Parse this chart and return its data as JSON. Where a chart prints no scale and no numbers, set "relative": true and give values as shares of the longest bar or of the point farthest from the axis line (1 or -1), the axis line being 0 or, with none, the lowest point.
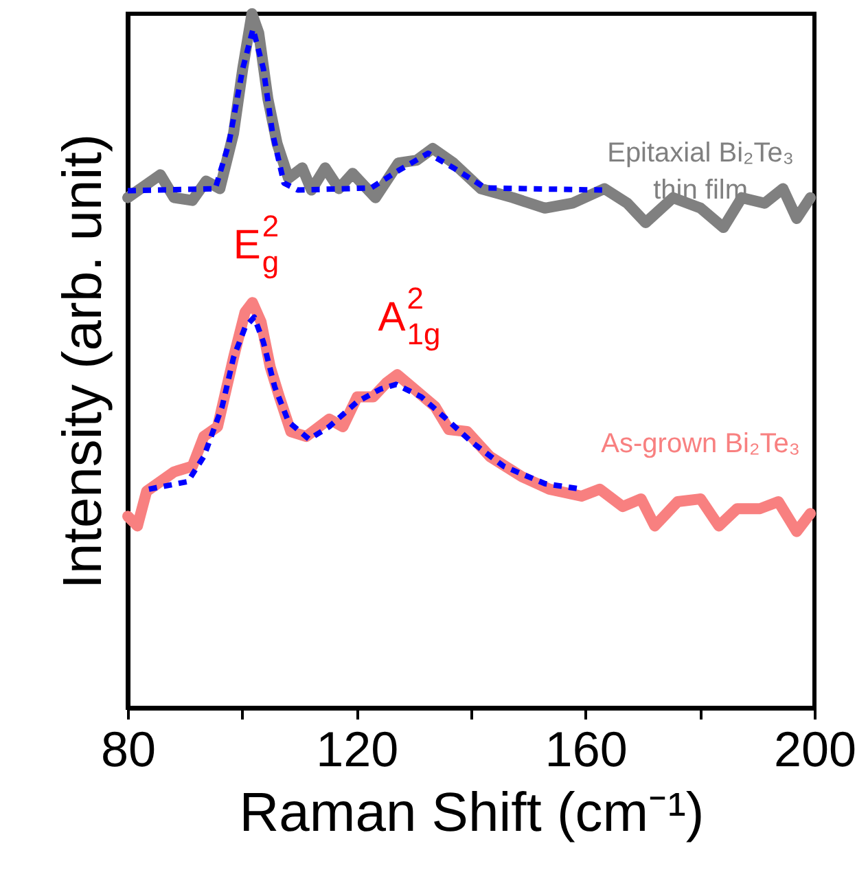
{
  "chart_data": {
    "type": "line",
    "relative": true,
    "xlabel": "Raman Shift (cm⁻¹)",
    "ylabel": "Intensity (arb. unit)",
    "xlim": [
      80,
      200
    ],
    "xticks": [
      80,
      {
        "value": 100,
        "label": null
      },
      120,
      {
        "value": 140,
        "label": null
      },
      160,
      {
        "value": 180,
        "label": null
      },
      200
    ],
    "grid": false,
    "legend": false,
    "marker": "none",
    "series": [
      {
        "name": "Epitaxial Bi₂Te₃\nthin film",
        "color": "#808080",
        "line_style": "solid",
        "x": [
          80,
          85.7,
          88.1,
          91.3,
          93.7,
          96.1,
          98.5,
          100.1,
          101.7,
          102.9,
          104.5,
          106.1,
          108.1,
          110.5,
          112.1,
          114.5,
          116.9,
          119.3,
          123.3,
          127.3,
          130.5,
          133.3,
          136.9,
          141.7,
          147.3,
          152.9,
          157.7,
          163.3,
          167.3,
          170.5,
          175.3,
          180.1,
          184.1,
          187.3,
          191.3,
          194.5,
          196.9,
          199.3
        ],
        "values": [
          0.735,
          0.768,
          0.735,
          0.731,
          0.759,
          0.748,
          0.828,
          0.921,
          1,
          0.972,
          0.877,
          0.813,
          0.763,
          0.778,
          0.746,
          0.778,
          0.748,
          0.77,
          0.735,
          0.785,
          0.789,
          0.806,
          0.785,
          0.748,
          0.735,
          0.72,
          0.727,
          0.748,
          0.727,
          0.699,
          0.735,
          0.72,
          0.692,
          0.735,
          0.727,
          0.748,
          0.705,
          0.735
        ]
      },
      {
        "color": "#0000ff",
        "line_style": "dashed",
        "x": [
          80,
          95.3,
          97.7,
          100.1,
          101.9,
          103.7,
          105.3,
          107.3,
          109.7,
          122.5,
          127.3,
          132.5,
          136.9,
          142.5,
          162.9
        ],
        "values": [
          0.745,
          0.748,
          0.814,
          0.921,
          0.978,
          0.921,
          0.828,
          0.756,
          0.746,
          0.749,
          0.774,
          0.799,
          0.778,
          0.749,
          0.746
        ]
      },
      {
        "name": "As-grown Bi₂Te₃",
        "color": "#f88080",
        "line_style": "solid",
        "x": [
          80,
          81.7,
          83.3,
          88.1,
          91.3,
          93.3,
          95.7,
          98.5,
          100.5,
          101.8,
          103.3,
          104.9,
          106.5,
          108.5,
          111.2,
          115.2,
          117.6,
          120.1,
          122.9,
          125.3,
          127.1,
          129.7,
          133.7,
          136.1,
          139.3,
          143.3,
          148.9,
          153.7,
          159.3,
          162.5,
          166.5,
          169.7,
          172.1,
          176.1,
          180.1,
          183.3,
          186.5,
          190.5,
          193.7,
          196.9,
          199.3
        ],
        "values": [
          0.276,
          0.262,
          0.312,
          0.34,
          0.348,
          0.391,
          0.405,
          0.505,
          0.57,
          0.584,
          0.556,
          0.491,
          0.448,
          0.398,
          0.391,
          0.416,
          0.405,
          0.448,
          0.448,
          0.469,
          0.48,
          0.462,
          0.434,
          0.401,
          0.398,
          0.362,
          0.333,
          0.315,
          0.305,
          0.315,
          0.29,
          0.301,
          0.262,
          0.297,
          0.301,
          0.262,
          0.287,
          0.287,
          0.297,
          0.254,
          0.28
        ]
      },
      {
        "color": "#0000ff",
        "line_style": "dashed",
        "x": [
          83.7,
          90.5,
          93.3,
          96.5,
          98.5,
          100.5,
          102.1,
          103.7,
          105.7,
          108.1,
          111.7,
          115.2,
          120.1,
          124.1,
          126.9,
          131.3,
          135.3,
          140.1,
          145.7,
          152.9,
          159.3
        ],
        "values": [
          0.315,
          0.326,
          0.362,
          0.434,
          0.505,
          0.548,
          0.563,
          0.527,
          0.462,
          0.412,
          0.387,
          0.405,
          0.441,
          0.459,
          0.466,
          0.448,
          0.419,
          0.383,
          0.348,
          0.323,
          0.315
        ]
      }
    ],
    "annotations": [
      {
        "text": "E$_{g}$$^{2}$",
        "x": 101.8,
        "y": 0.584
      },
      {
        "text": "A$_{1g}$$^{2}$",
        "x": 127.1,
        "y": 0.48
      }
    ]
  }
}
